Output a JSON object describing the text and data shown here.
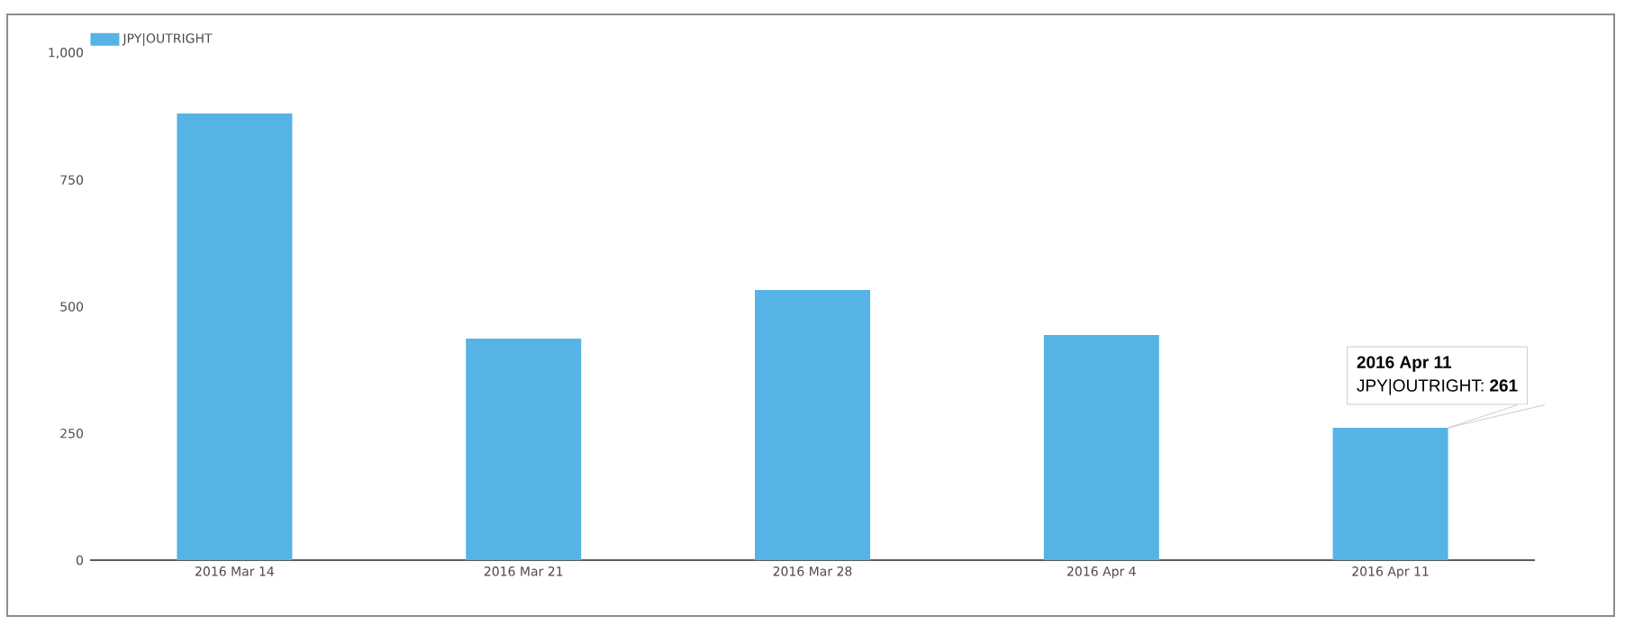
{
  "chart_data": {
    "type": "bar",
    "categories": [
      "2016 Mar 14",
      "2016 Mar 21",
      "2016 Mar 28",
      "2016 Apr 4",
      "2016 Apr 11"
    ],
    "series": [
      {
        "name": "JPY|OUTRIGHT",
        "color": "#56b3e6",
        "values": [
          881,
          437,
          533,
          444,
          261
        ]
      }
    ],
    "ylim": [
      0,
      1000
    ],
    "yticks": [
      0,
      250,
      500,
      750,
      {
        "value": 1000,
        "label": "1,000"
      }
    ],
    "legend": "top left",
    "annotations": [
      "2016 Apr 11",
      {
        "text": "JPY|OUTRIGHT: **261**",
        "x": "2016 Apr 11",
        "y": 261
      }
    ]
  }
}
